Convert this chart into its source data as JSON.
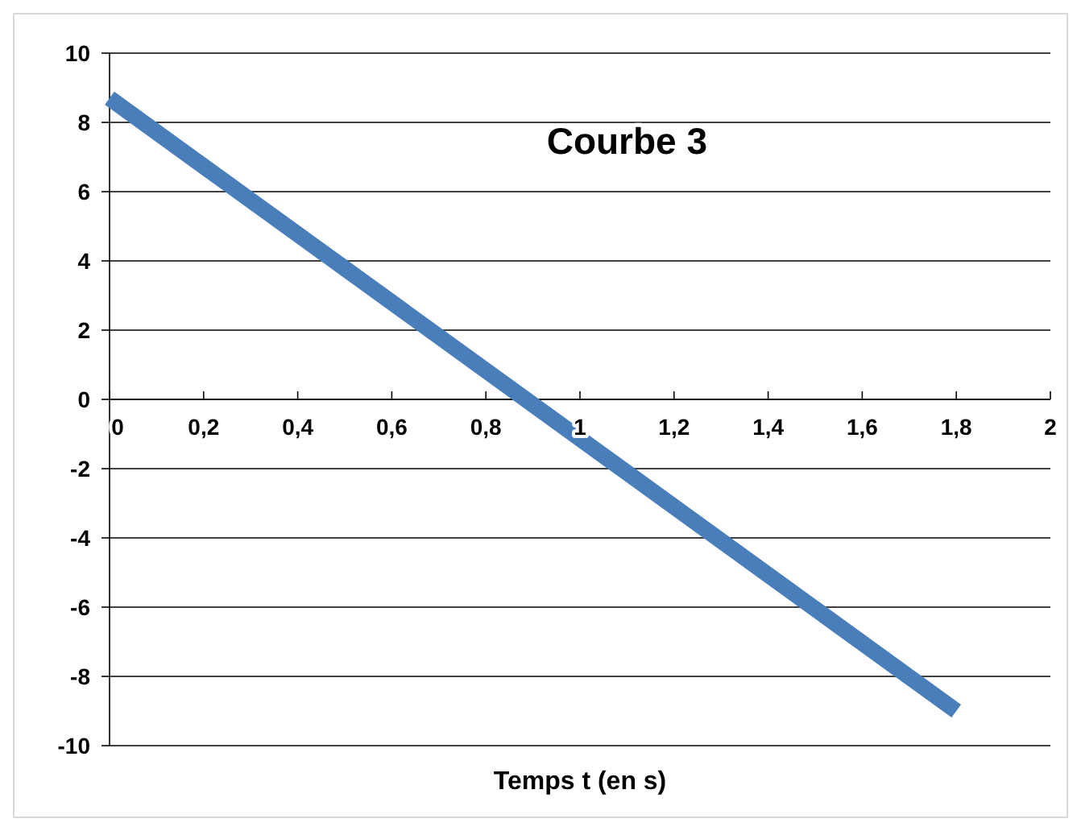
{
  "chart_data": {
    "type": "line",
    "title": "Courbe 3",
    "xlabel": "Temps  t (en s)",
    "x": [
      0,
      1.8
    ],
    "series": [
      {
        "color": "#4a7ebb",
        "values": [
          8.7,
          -9
        ]
      }
    ],
    "xlim": [
      0,
      2
    ],
    "xticks": [
      0,
      {
        "value": 0.2,
        "label": "0,2"
      },
      {
        "value": 0.4,
        "label": "0,4"
      },
      {
        "value": 0.6,
        "label": "0,6"
      },
      {
        "value": 0.8,
        "label": "0,8"
      },
      1,
      {
        "value": 1.2,
        "label": "1,2"
      },
      {
        "value": 1.4,
        "label": "1,4"
      },
      {
        "value": 1.6,
        "label": "1,6"
      },
      {
        "value": 1.8,
        "label": "1,8"
      },
      2
    ],
    "ylim": [
      -10,
      10
    ],
    "yticks": [
      -10,
      -8,
      -6,
      -4,
      -2,
      0,
      2,
      4,
      6,
      8,
      10
    ],
    "grid": "y",
    "marker": "none",
    "line_style": "solid"
  }
}
